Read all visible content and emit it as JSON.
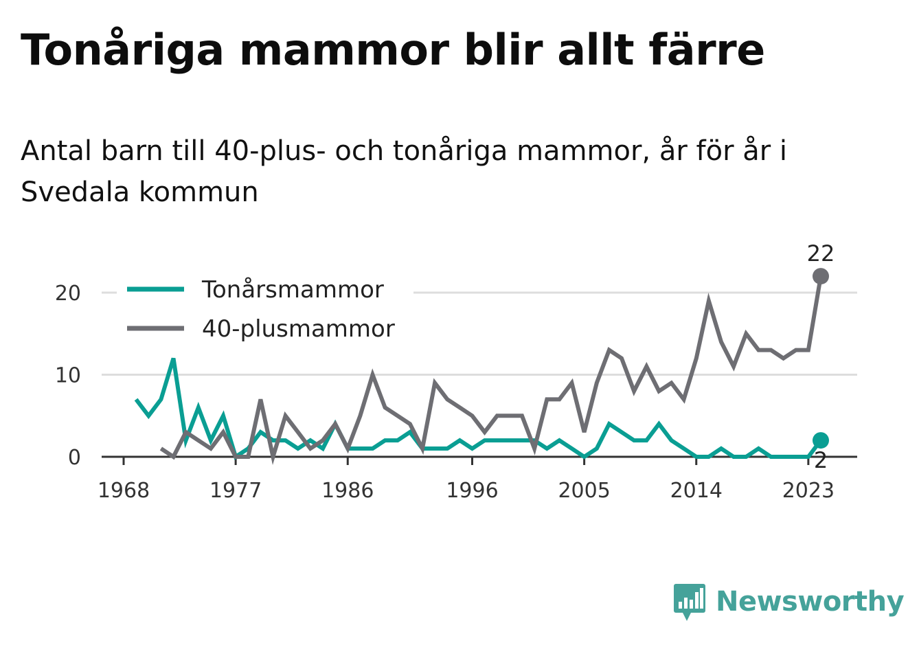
{
  "title": "Tonåriga mammor blir allt färre",
  "subtitle": "Antal barn till 40-plus- och tonåriga mammor, år för år i Svedala kommun",
  "brand": "Newsworthy",
  "colors": {
    "teen": "#0a9e93",
    "forty": "#6e6e73",
    "grid": "#dddddd",
    "axis": "#333333",
    "brand": "#45a29a"
  },
  "chart_data": {
    "type": "line",
    "title": "Tonåriga mammor blir allt färre",
    "subtitle": "Antal barn till 40-plus- och tonåriga mammor, år för år i Svedala kommun",
    "xlabel": "",
    "ylabel": "",
    "xlim": [
      1968,
      2026
    ],
    "ylim": [
      0,
      24
    ],
    "x_ticks": [
      1968,
      1977,
      1986,
      1996,
      2005,
      2014,
      2023
    ],
    "y_ticks": [
      0,
      10,
      20
    ],
    "grid": "horizontal",
    "legend_position": "top-left",
    "series": [
      {
        "name": "Tonårsmammor",
        "color": "#0a9e93",
        "end_label": "2",
        "x": [
          1969,
          1970,
          1971,
          1972,
          1973,
          1974,
          1975,
          1976,
          1977,
          1978,
          1979,
          1980,
          1981,
          1982,
          1983,
          1984,
          1985,
          1986,
          1987,
          1988,
          1989,
          1990,
          1991,
          1992,
          1993,
          1994,
          1995,
          1996,
          1997,
          1998,
          1999,
          2000,
          2001,
          2002,
          2003,
          2004,
          2005,
          2006,
          2007,
          2008,
          2009,
          2010,
          2011,
          2012,
          2013,
          2014,
          2015,
          2016,
          2017,
          2018,
          2019,
          2020,
          2021,
          2022,
          2023,
          2024
        ],
        "values": [
          7,
          5,
          7,
          12,
          2,
          6,
          2,
          5,
          0,
          1,
          3,
          2,
          2,
          1,
          2,
          1,
          4,
          1,
          1,
          1,
          2,
          2,
          3,
          1,
          1,
          1,
          2,
          1,
          2,
          2,
          2,
          2,
          2,
          1,
          2,
          1,
          0,
          1,
          4,
          3,
          2,
          2,
          4,
          2,
          1,
          0,
          0,
          1,
          0,
          0,
          1,
          0,
          0,
          0,
          0,
          2
        ]
      },
      {
        "name": "40-plusmammor",
        "color": "#6e6e73",
        "end_label": "22",
        "x": [
          1971,
          1972,
          1973,
          1974,
          1975,
          1976,
          1977,
          1978,
          1979,
          1980,
          1981,
          1982,
          1983,
          1984,
          1985,
          1986,
          1987,
          1988,
          1989,
          1990,
          1991,
          1992,
          1993,
          1994,
          1995,
          1996,
          1997,
          1998,
          1999,
          2000,
          2001,
          2002,
          2003,
          2004,
          2005,
          2006,
          2007,
          2008,
          2009,
          2010,
          2011,
          2012,
          2013,
          2014,
          2015,
          2016,
          2017,
          2018,
          2019,
          2020,
          2021,
          2022,
          2023,
          2024
        ],
        "values": [
          1,
          0,
          3,
          2,
          1,
          3,
          0,
          0,
          7,
          0,
          5,
          3,
          1,
          2,
          4,
          1,
          5,
          10,
          6,
          5,
          4,
          1,
          9,
          7,
          6,
          5,
          3,
          5,
          5,
          5,
          1,
          7,
          7,
          9,
          3,
          9,
          13,
          12,
          8,
          11,
          8,
          9,
          7,
          12,
          19,
          14,
          11,
          15,
          13,
          13,
          12,
          13,
          13,
          22
        ]
      }
    ]
  }
}
